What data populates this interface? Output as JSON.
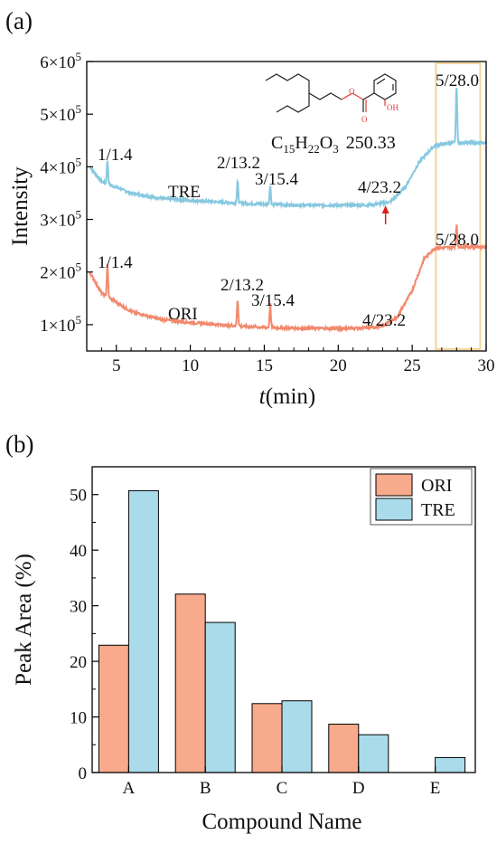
{
  "chart_data": [
    {
      "type": "line",
      "panel_label": "(a)",
      "xlabel": "t(min)",
      "ylabel": "Intensity",
      "xlim": [
        3,
        30
      ],
      "ylim": [
        50000,
        600000
      ],
      "x_ticks": [
        "5",
        "10",
        "15",
        "20",
        "25",
        "30"
      ],
      "y_ticks": [
        "1×10^5",
        "2×10^5",
        "3×10^5",
        "4×10^5",
        "5×10^5",
        "6×10^5"
      ],
      "x_tick_values": [
        5,
        10,
        15,
        20,
        25,
        30
      ],
      "y_tick_values": [
        100000,
        200000,
        300000,
        400000,
        500000,
        600000
      ],
      "series": [
        {
          "name": "TRE",
          "color": "#87c8e0",
          "baseline": [
            [
              3.2,
              400000
            ],
            [
              4,
              372000
            ],
            [
              6,
              350000
            ],
            [
              8,
              340000
            ],
            [
              10,
              336000
            ],
            [
              12,
              333000
            ],
            [
              14,
              330000
            ],
            [
              16,
              328000
            ],
            [
              18,
              327000
            ],
            [
              20,
              327000
            ],
            [
              22,
              327000
            ],
            [
              23.5,
              333000
            ],
            [
              24.5,
              360000
            ],
            [
              25.5,
              410000
            ],
            [
              26.5,
              440000
            ],
            [
              27.5,
              445000
            ],
            [
              28.5,
              446000
            ],
            [
              30,
              445000
            ]
          ],
          "peaks": [
            [
              4.4,
              412000
            ],
            [
              13.2,
              372000
            ],
            [
              15.4,
              365000
            ],
            [
              28.0,
              555000
            ]
          ]
        },
        {
          "name": "ORI",
          "color": "#f2896c",
          "baseline": [
            [
              3.2,
              200000
            ],
            [
              4,
              160000
            ],
            [
              6,
              125000
            ],
            [
              8,
              110000
            ],
            [
              10,
              104000
            ],
            [
              12,
              100000
            ],
            [
              14,
              96000
            ],
            [
              16,
              94000
            ],
            [
              18,
              93000
            ],
            [
              20,
              93000
            ],
            [
              22,
              94000
            ],
            [
              23,
              97000
            ],
            [
              24,
              115000
            ],
            [
              25,
              165000
            ],
            [
              25.8,
              225000
            ],
            [
              26.5,
              245000
            ],
            [
              28,
              248000
            ],
            [
              30,
              248000
            ]
          ],
          "peaks": [
            [
              4.4,
              213000
            ],
            [
              13.2,
              148000
            ],
            [
              15.4,
              140000
            ],
            [
              28.0,
              290000
            ]
          ]
        }
      ],
      "annotations": [
        {
          "text": "1/1.4",
          "series": "TRE"
        },
        {
          "text": "2/13.2",
          "series": "TRE"
        },
        {
          "text": "3/15.4",
          "series": "TRE"
        },
        {
          "text": "4/23.2",
          "series": "TRE"
        },
        {
          "text": "5/28.0",
          "series": "TRE"
        },
        {
          "text": "TRE",
          "series": "TRE"
        },
        {
          "text": "1/1.4",
          "series": "ORI"
        },
        {
          "text": "2/13.2",
          "series": "ORI"
        },
        {
          "text": "3/15.4",
          "series": "ORI"
        },
        {
          "text": "4/23.2",
          "series": "ORI"
        },
        {
          "text": "5/28.0",
          "series": "ORI"
        },
        {
          "text": "ORI",
          "series": "ORI"
        }
      ],
      "highlight_box": {
        "x_range": [
          26.6,
          29.6
        ],
        "color": "#f4d49a"
      },
      "arrow": {
        "x": 23.2,
        "color": "#d91f1f"
      },
      "formula": {
        "text": "C15H22O3 250.33",
        "main": "C",
        "c_sub": "15",
        "h": "H",
        "h_sub": "22",
        "o": "O",
        "o_sub": "3",
        "mass": "250.33",
        "oxygen_color": "#e23c3c"
      },
      "formula_oh": "OH"
    },
    {
      "type": "bar",
      "panel_label": "(b)",
      "categories": [
        "A",
        "B",
        "C",
        "D",
        "E"
      ],
      "series": [
        {
          "name": "ORI",
          "color": "#f8aa8c",
          "values": [
            22.9,
            32.1,
            12.4,
            8.7,
            0
          ]
        },
        {
          "name": "TRE",
          "color": "#aadbea",
          "values": [
            50.7,
            27.0,
            12.9,
            6.8,
            2.7
          ]
        }
      ],
      "xlabel": "Compound Name",
      "ylabel": "Peak Area (%)",
      "ylim": [
        0,
        55
      ],
      "y_ticks": [
        "0",
        "10",
        "20",
        "30",
        "40",
        "50"
      ],
      "y_tick_values": [
        0,
        10,
        20,
        30,
        40,
        50
      ],
      "legend": "top-right"
    }
  ]
}
